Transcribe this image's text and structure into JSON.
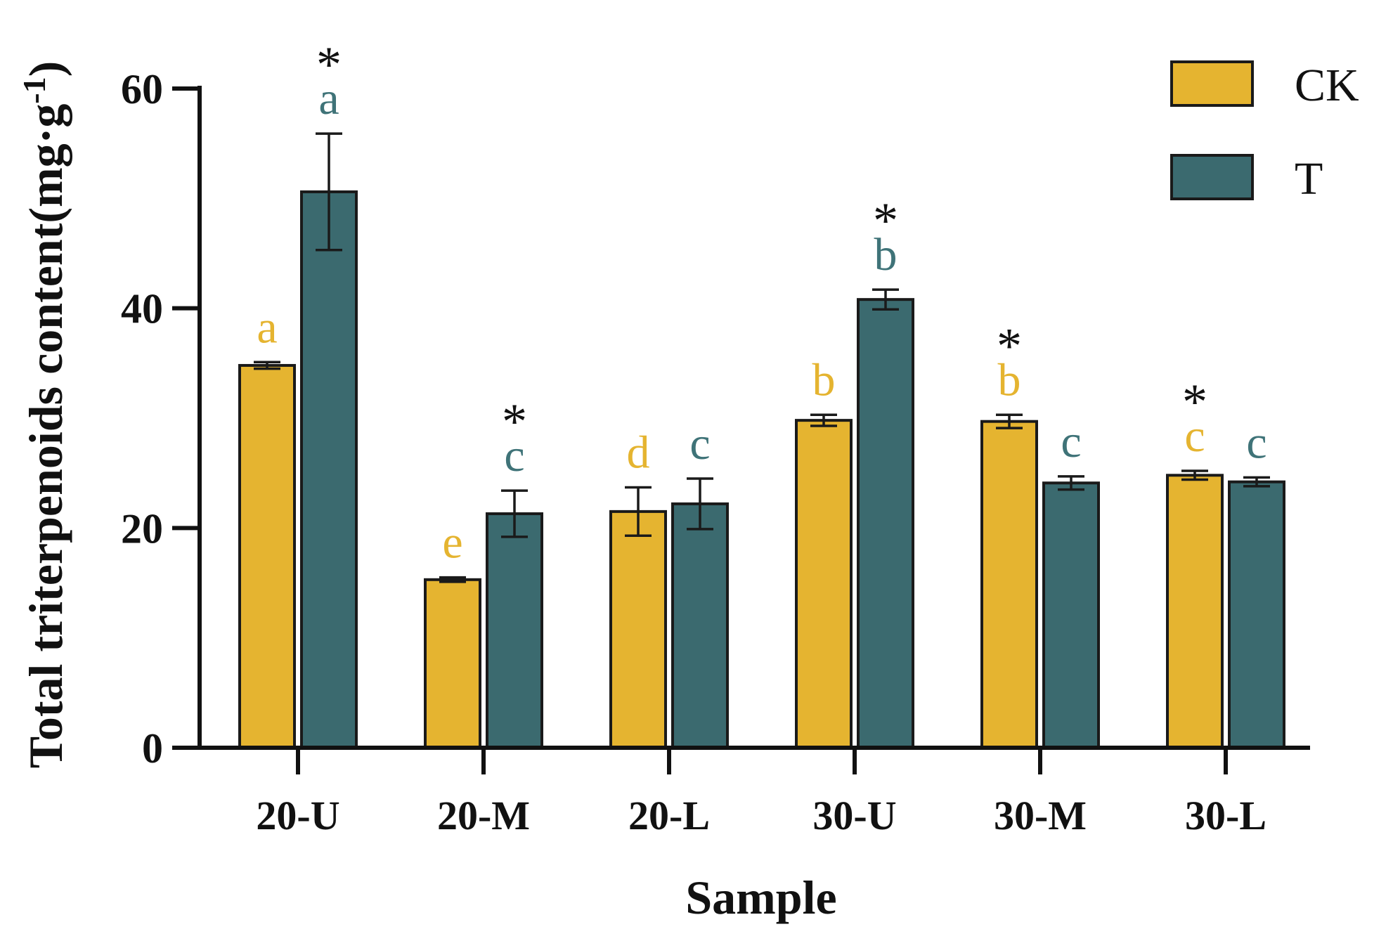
{
  "chart_data": {
    "type": "bar",
    "title": "",
    "xlabel": "Sample",
    "ylabel": "Total triterpenoids content(mg·g",
    "ylabel_superscript": "-1",
    "ylabel_close": ")",
    "ylim": [
      0,
      60
    ],
    "yticks": [
      0,
      20,
      40,
      60
    ],
    "ytick_labels": [
      "0",
      "20",
      "40",
      "60"
    ],
    "grid": false,
    "legend_position": "top-right",
    "categories": [
      "20-U",
      "20-M",
      "20-L",
      "30-U",
      "30-M",
      "30-L"
    ],
    "series": [
      {
        "name": "CK",
        "color": "#E5B430",
        "values": [
          34.8,
          15.3,
          21.5,
          29.8,
          29.7,
          24.8
        ],
        "errors": [
          0.3,
          0.2,
          2.2,
          0.5,
          0.6,
          0.4
        ],
        "letters": [
          "a",
          "e",
          "d",
          "b",
          "b",
          "c"
        ],
        "letter_color": "#E5B430",
        "significant": [
          false,
          false,
          false,
          false,
          true,
          true
        ]
      },
      {
        "name": "T",
        "color": "#3B6A6F",
        "values": [
          50.6,
          21.3,
          22.2,
          40.8,
          24.1,
          24.2
        ],
        "errors": [
          5.3,
          2.1,
          2.3,
          0.9,
          0.6,
          0.4
        ],
        "letters": [
          "a",
          "c",
          "c",
          "b",
          "c",
          "c"
        ],
        "letter_color": "#3F7378",
        "significant": [
          true,
          true,
          false,
          true,
          false,
          false
        ]
      }
    ],
    "significance_marker": "*"
  }
}
